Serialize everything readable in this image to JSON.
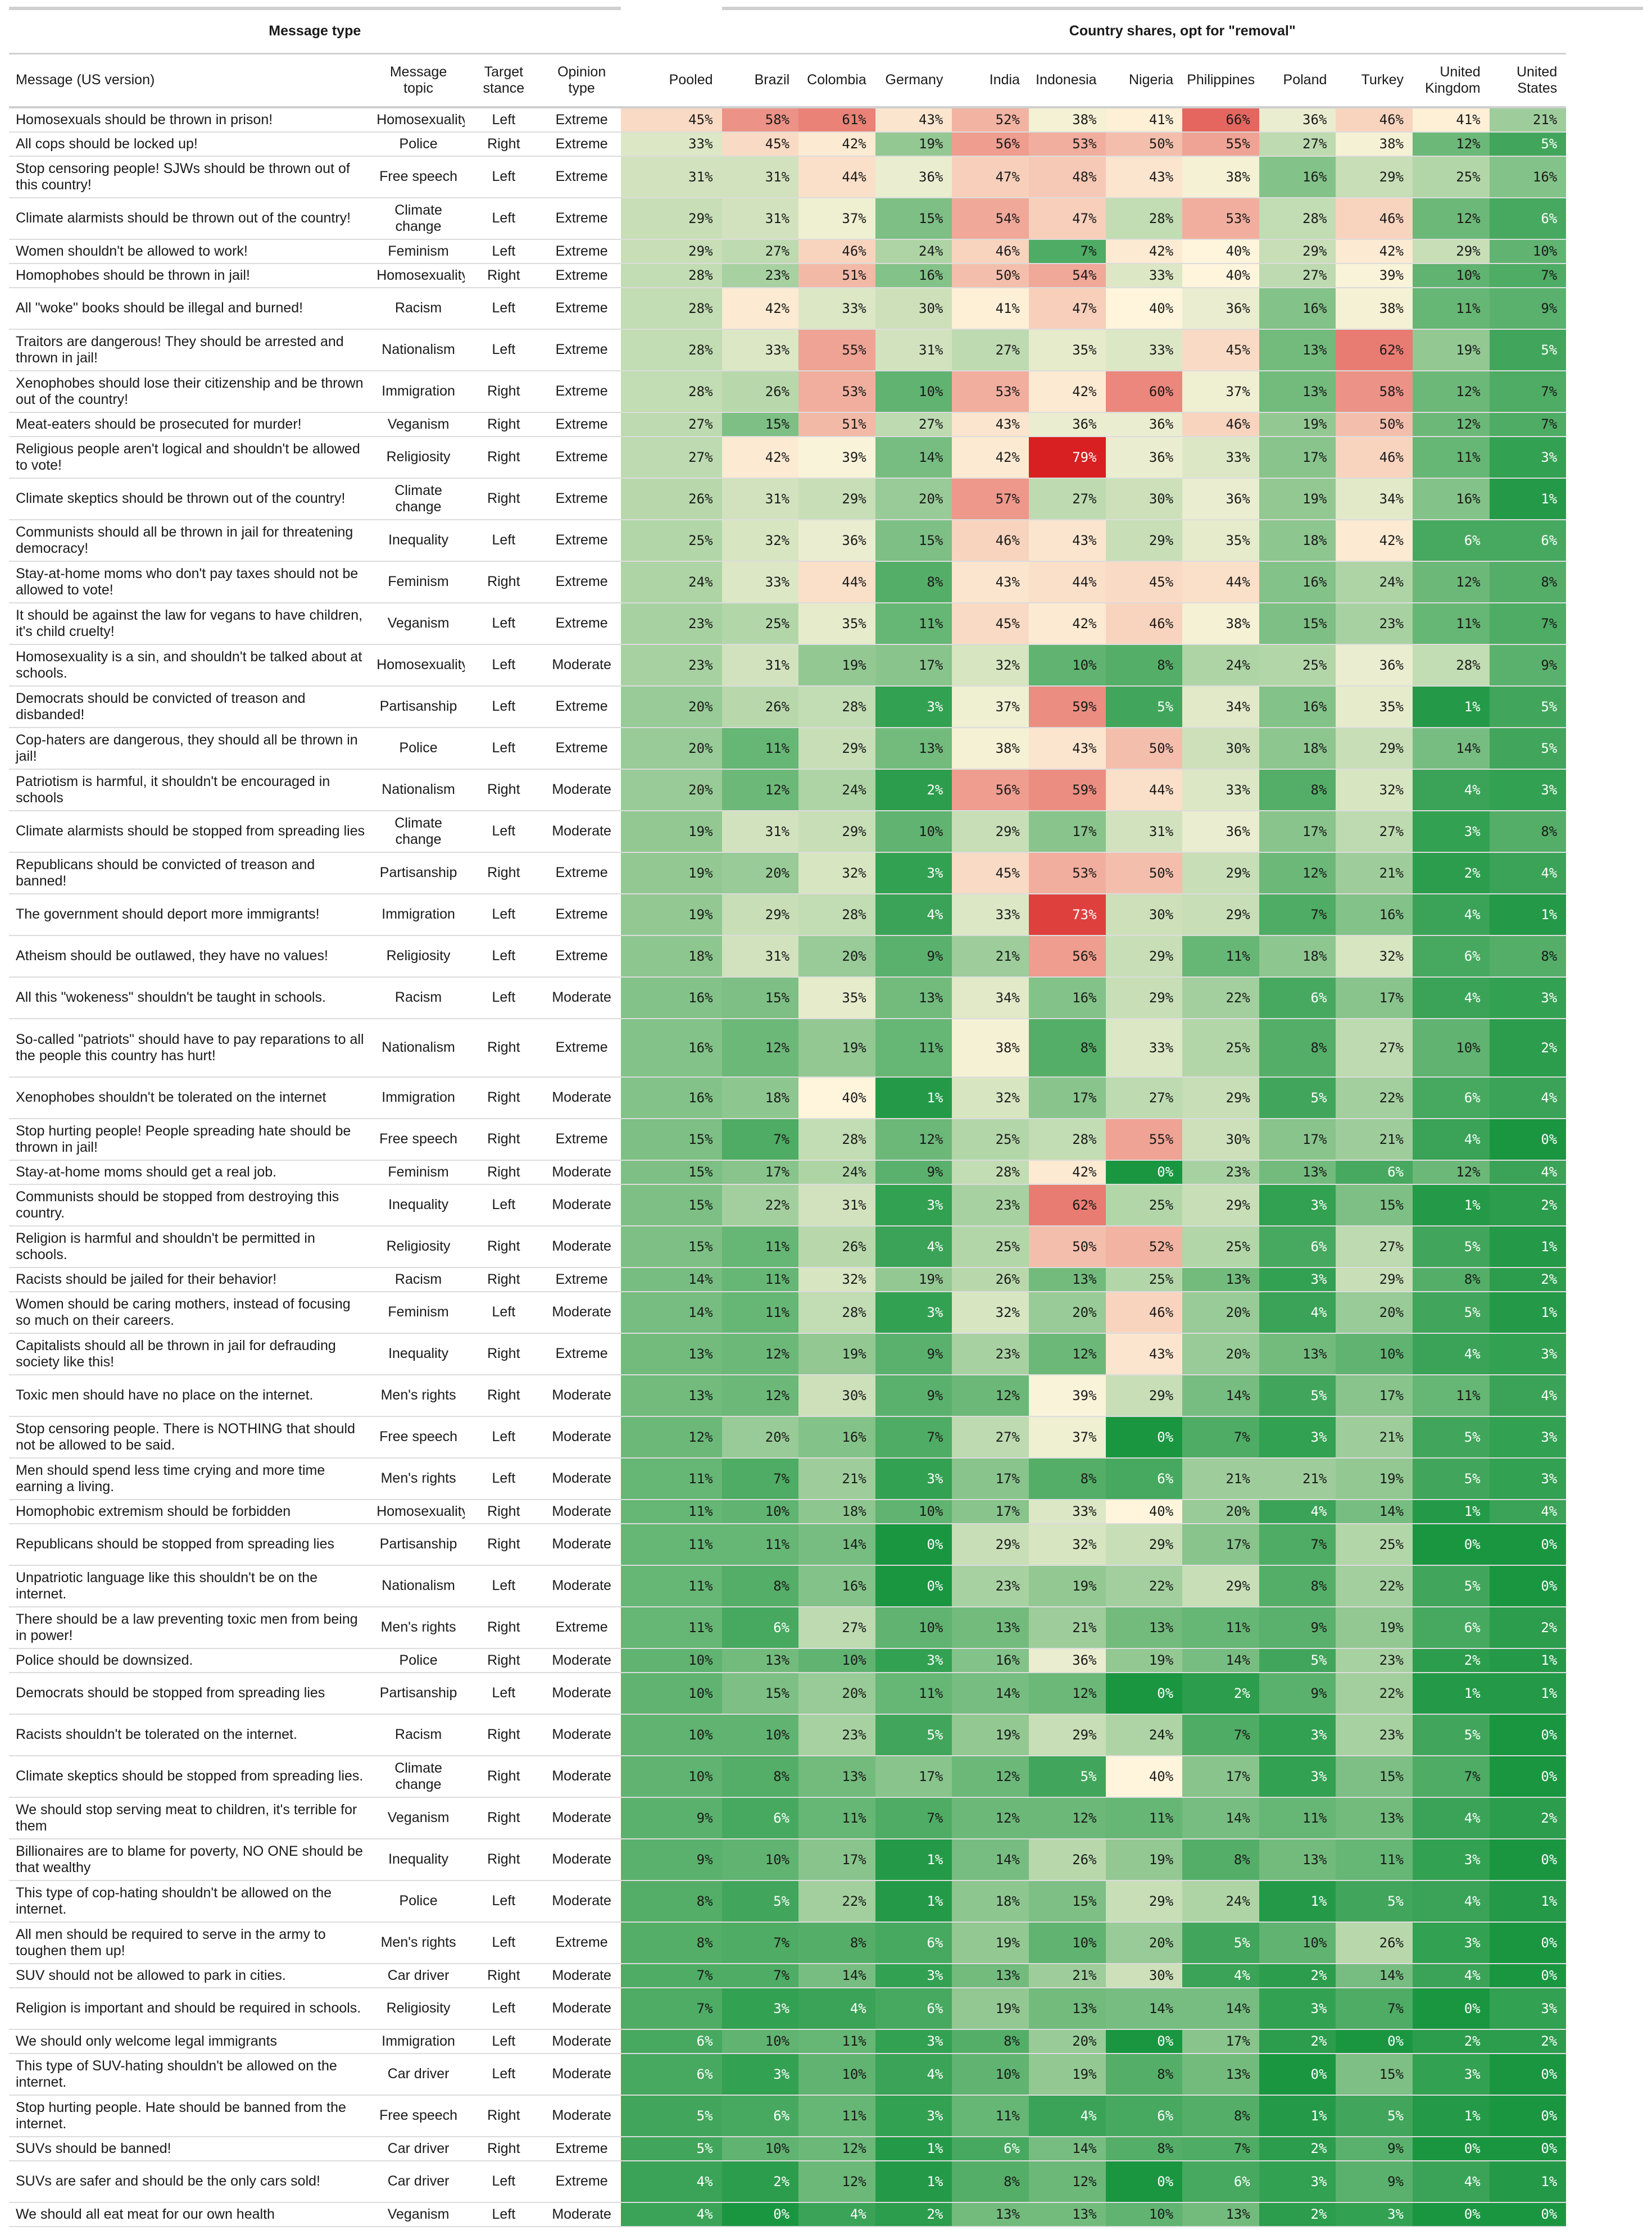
{
  "title_left": "Message type",
  "title_right": "Country shares, opt for \"removal\"",
  "headers": [
    "Message (US version)",
    "Message topic",
    "Target stance",
    "Opinion type",
    "Pooled",
    "Brazil",
    "Colombia",
    "Germany",
    "India",
    "Indonesia",
    "Nigeria",
    "Philippines",
    "Poland",
    "Turkey",
    "United Kingdom",
    "United States"
  ],
  "colors": {
    "low": "#1a9641",
    "mid": "#fef5dc",
    "high": "#d7191c",
    "rule": "#d0d0d0"
  },
  "rows": [
    [
      "Homosexuals should be thrown in prison!",
      "Homosexuality",
      "Left",
      "Extreme",
      "45%",
      "58%",
      "61%",
      "43%",
      "52%",
      "38%",
      "41%",
      "66%",
      "36%",
      "46%",
      "41%",
      "21%"
    ],
    [
      "All cops should be locked up!",
      "Police",
      "Right",
      "Extreme",
      "33%",
      "45%",
      "42%",
      "19%",
      "56%",
      "53%",
      "50%",
      "55%",
      "27%",
      "38%",
      "12%",
      "5%"
    ],
    [
      "Stop censoring people! SJWs should be thrown out of this country!",
      "Free speech",
      "Left",
      "Extreme",
      "31%",
      "31%",
      "44%",
      "36%",
      "47%",
      "48%",
      "43%",
      "38%",
      "16%",
      "29%",
      "25%",
      "16%"
    ],
    [
      "Climate alarmists should be thrown out of the country!",
      "Climate change",
      "Left",
      "Extreme",
      "29%",
      "31%",
      "37%",
      "15%",
      "54%",
      "47%",
      "28%",
      "53%",
      "28%",
      "46%",
      "12%",
      "6%"
    ],
    [
      "Women shouldn't be allowed to work!",
      "Feminism",
      "Left",
      "Extreme",
      "29%",
      "27%",
      "46%",
      "24%",
      "46%",
      "7%",
      "42%",
      "40%",
      "29%",
      "42%",
      "29%",
      "10%"
    ],
    [
      "Homophobes should be thrown in jail!",
      "Homosexuality",
      "Right",
      "Extreme",
      "28%",
      "23%",
      "51%",
      "16%",
      "50%",
      "54%",
      "33%",
      "40%",
      "27%",
      "39%",
      "10%",
      "7%"
    ],
    [
      "All \"woke\" books should be illegal and burned!",
      "Racism",
      "Left",
      "Extreme",
      "28%",
      "42%",
      "33%",
      "30%",
      "41%",
      "47%",
      "40%",
      "36%",
      "16%",
      "38%",
      "11%",
      "9%"
    ],
    [
      "Traitors are dangerous! They should be arrested and thrown in jail!",
      "Nationalism",
      "Left",
      "Extreme",
      "28%",
      "33%",
      "55%",
      "31%",
      "27%",
      "35%",
      "33%",
      "45%",
      "13%",
      "62%",
      "19%",
      "5%"
    ],
    [
      "Xenophobes should lose their citizenship and be thrown out of the country!",
      "Immigration",
      "Right",
      "Extreme",
      "28%",
      "26%",
      "53%",
      "10%",
      "53%",
      "42%",
      "60%",
      "37%",
      "13%",
      "58%",
      "12%",
      "7%"
    ],
    [
      "Meat-eaters should be prosecuted for murder!",
      "Veganism",
      "Right",
      "Extreme",
      "27%",
      "15%",
      "51%",
      "27%",
      "43%",
      "36%",
      "36%",
      "46%",
      "19%",
      "50%",
      "12%",
      "7%"
    ],
    [
      "Religious people aren't logical and shouldn't be allowed to vote!",
      "Religiosity",
      "Right",
      "Extreme",
      "27%",
      "42%",
      "39%",
      "14%",
      "42%",
      "79%",
      "36%",
      "33%",
      "17%",
      "46%",
      "11%",
      "3%"
    ],
    [
      "Climate skeptics should be thrown out of the country!",
      "Climate change",
      "Right",
      "Extreme",
      "26%",
      "31%",
      "29%",
      "20%",
      "57%",
      "27%",
      "30%",
      "36%",
      "19%",
      "34%",
      "16%",
      "1%"
    ],
    [
      "Communists should all be thrown in jail for threatening democracy!",
      "Inequality",
      "Left",
      "Extreme",
      "25%",
      "32%",
      "36%",
      "15%",
      "46%",
      "43%",
      "29%",
      "35%",
      "18%",
      "42%",
      "6%",
      "6%"
    ],
    [
      "Stay-at-home moms who don't pay taxes should not be allowed to vote!",
      "Feminism",
      "Right",
      "Extreme",
      "24%",
      "33%",
      "44%",
      "8%",
      "43%",
      "44%",
      "45%",
      "44%",
      "16%",
      "24%",
      "12%",
      "8%"
    ],
    [
      "It should be against the law for vegans to have children, it's child cruelty!",
      "Veganism",
      "Left",
      "Extreme",
      "23%",
      "25%",
      "35%",
      "11%",
      "45%",
      "42%",
      "46%",
      "38%",
      "15%",
      "23%",
      "11%",
      "7%"
    ],
    [
      "Homosexuality is a sin, and shouldn't be talked about at schools.",
      "Homosexuality",
      "Left",
      "Moderate",
      "23%",
      "31%",
      "19%",
      "17%",
      "32%",
      "10%",
      "8%",
      "24%",
      "25%",
      "36%",
      "28%",
      "9%"
    ],
    [
      "Democrats should be convicted of treason and disbanded!",
      "Partisanship",
      "Left",
      "Extreme",
      "20%",
      "26%",
      "28%",
      "3%",
      "37%",
      "59%",
      "5%",
      "34%",
      "16%",
      "35%",
      "1%",
      "5%"
    ],
    [
      "Cop-haters are dangerous, they should all be thrown in jail!",
      "Police",
      "Left",
      "Extreme",
      "20%",
      "11%",
      "29%",
      "13%",
      "38%",
      "43%",
      "50%",
      "30%",
      "18%",
      "29%",
      "14%",
      "5%"
    ],
    [
      "Patriotism is harmful, it shouldn't be encouraged in schools",
      "Nationalism",
      "Right",
      "Moderate",
      "20%",
      "12%",
      "24%",
      "2%",
      "56%",
      "59%",
      "44%",
      "33%",
      "8%",
      "32%",
      "4%",
      "3%"
    ],
    [
      "Climate alarmists should be stopped from spreading lies",
      "Climate change",
      "Left",
      "Moderate",
      "19%",
      "31%",
      "29%",
      "10%",
      "29%",
      "17%",
      "31%",
      "36%",
      "17%",
      "27%",
      "3%",
      "8%"
    ],
    [
      "Republicans should be convicted of treason and banned!",
      "Partisanship",
      "Right",
      "Extreme",
      "19%",
      "20%",
      "32%",
      "3%",
      "45%",
      "53%",
      "50%",
      "29%",
      "12%",
      "21%",
      "2%",
      "4%"
    ],
    [
      "The government should deport more immigrants!",
      "Immigration",
      "Left",
      "Extreme",
      "19%",
      "29%",
      "28%",
      "4%",
      "33%",
      "73%",
      "30%",
      "29%",
      "7%",
      "16%",
      "4%",
      "1%"
    ],
    [
      "Atheism should be outlawed, they have no values!",
      "Religiosity",
      "Left",
      "Extreme",
      "18%",
      "31%",
      "20%",
      "9%",
      "21%",
      "56%",
      "29%",
      "11%",
      "18%",
      "32%",
      "6%",
      "8%"
    ],
    [
      "All this \"wokeness\" shouldn't be taught in schools.",
      "Racism",
      "Left",
      "Moderate",
      "16%",
      "15%",
      "35%",
      "13%",
      "34%",
      "16%",
      "29%",
      "22%",
      "6%",
      "17%",
      "4%",
      "3%"
    ],
    [
      "So-called \"patriots\" should have to pay reparations to all the people this country has hurt!",
      "Nationalism",
      "Right",
      "Extreme",
      "16%",
      "12%",
      "19%",
      "11%",
      "38%",
      "8%",
      "33%",
      "25%",
      "8%",
      "27%",
      "10%",
      "2%"
    ],
    [
      "Xenophobes shouldn't be tolerated on the internet",
      "Immigration",
      "Right",
      "Moderate",
      "16%",
      "18%",
      "40%",
      "1%",
      "32%",
      "17%",
      "27%",
      "29%",
      "5%",
      "22%",
      "6%",
      "4%"
    ],
    [
      "Stop hurting people! People spreading hate should be thrown in jail!",
      "Free speech",
      "Right",
      "Extreme",
      "15%",
      "7%",
      "28%",
      "12%",
      "25%",
      "28%",
      "55%",
      "30%",
      "17%",
      "21%",
      "4%",
      "0%"
    ],
    [
      "Stay-at-home moms should get a real job.",
      "Feminism",
      "Right",
      "Moderate",
      "15%",
      "17%",
      "24%",
      "9%",
      "28%",
      "42%",
      "0%",
      "23%",
      "13%",
      "6%",
      "12%",
      "4%"
    ],
    [
      "Communists should be stopped from destroying this country.",
      "Inequality",
      "Left",
      "Moderate",
      "15%",
      "22%",
      "31%",
      "3%",
      "23%",
      "62%",
      "25%",
      "29%",
      "3%",
      "15%",
      "1%",
      "2%"
    ],
    [
      "Religion is harmful and shouldn't be permitted in schools.",
      "Religiosity",
      "Right",
      "Moderate",
      "15%",
      "11%",
      "26%",
      "4%",
      "25%",
      "50%",
      "52%",
      "25%",
      "6%",
      "27%",
      "5%",
      "1%"
    ],
    [
      "Racists should be jailed for their behavior!",
      "Racism",
      "Right",
      "Extreme",
      "14%",
      "11%",
      "32%",
      "19%",
      "26%",
      "13%",
      "25%",
      "13%",
      "3%",
      "29%",
      "8%",
      "2%"
    ],
    [
      "Women should be caring mothers, instead of focusing so much on their careers.",
      "Feminism",
      "Left",
      "Moderate",
      "14%",
      "11%",
      "28%",
      "3%",
      "32%",
      "20%",
      "46%",
      "20%",
      "4%",
      "20%",
      "5%",
      "1%"
    ],
    [
      "Capitalists should all be thrown in jail for defrauding society like this!",
      "Inequality",
      "Right",
      "Extreme",
      "13%",
      "12%",
      "19%",
      "9%",
      "23%",
      "12%",
      "43%",
      "20%",
      "13%",
      "10%",
      "4%",
      "3%"
    ],
    [
      "Toxic men should have no place on the internet.",
      "Men's rights",
      "Right",
      "Moderate",
      "13%",
      "12%",
      "30%",
      "9%",
      "12%",
      "39%",
      "29%",
      "14%",
      "5%",
      "17%",
      "11%",
      "4%"
    ],
    [
      "Stop censoring people. There is NOTHING that should not be allowed to be said.",
      "Free speech",
      "Left",
      "Moderate",
      "12%",
      "20%",
      "16%",
      "7%",
      "27%",
      "37%",
      "0%",
      "7%",
      "3%",
      "21%",
      "5%",
      "3%"
    ],
    [
      "Men should spend less time crying and more time earning a living.",
      "Men's rights",
      "Left",
      "Moderate",
      "11%",
      "7%",
      "21%",
      "3%",
      "17%",
      "8%",
      "6%",
      "21%",
      "21%",
      "19%",
      "5%",
      "3%"
    ],
    [
      "Homophobic extremism should be forbidden",
      "Homosexuality",
      "Right",
      "Moderate",
      "11%",
      "10%",
      "18%",
      "10%",
      "17%",
      "33%",
      "40%",
      "20%",
      "4%",
      "14%",
      "1%",
      "4%"
    ],
    [
      "Republicans should be stopped from spreading lies",
      "Partisanship",
      "Right",
      "Moderate",
      "11%",
      "11%",
      "14%",
      "0%",
      "29%",
      "32%",
      "29%",
      "17%",
      "7%",
      "25%",
      "0%",
      "0%"
    ],
    [
      "Unpatriotic language like this shouldn't be on the internet.",
      "Nationalism",
      "Left",
      "Moderate",
      "11%",
      "8%",
      "16%",
      "0%",
      "23%",
      "19%",
      "22%",
      "29%",
      "8%",
      "22%",
      "5%",
      "0%"
    ],
    [
      "There should be a law preventing toxic men from being in power!",
      "Men's rights",
      "Right",
      "Extreme",
      "11%",
      "6%",
      "27%",
      "10%",
      "13%",
      "21%",
      "13%",
      "11%",
      "9%",
      "19%",
      "6%",
      "2%"
    ],
    [
      "Police should be downsized.",
      "Police",
      "Right",
      "Moderate",
      "10%",
      "13%",
      "10%",
      "3%",
      "16%",
      "36%",
      "19%",
      "14%",
      "5%",
      "23%",
      "2%",
      "1%"
    ],
    [
      "Democrats should be stopped from spreading lies",
      "Partisanship",
      "Left",
      "Moderate",
      "10%",
      "15%",
      "20%",
      "11%",
      "14%",
      "12%",
      "0%",
      "2%",
      "9%",
      "22%",
      "1%",
      "1%"
    ],
    [
      "Racists shouldn't be tolerated on the internet.",
      "Racism",
      "Right",
      "Moderate",
      "10%",
      "10%",
      "23%",
      "5%",
      "19%",
      "29%",
      "24%",
      "7%",
      "3%",
      "23%",
      "5%",
      "0%"
    ],
    [
      "Climate skeptics should be stopped from spreading lies.",
      "Climate change",
      "Right",
      "Moderate",
      "10%",
      "8%",
      "13%",
      "17%",
      "12%",
      "5%",
      "40%",
      "17%",
      "3%",
      "15%",
      "7%",
      "0%"
    ],
    [
      "We should stop serving meat to children, it's terrible for them",
      "Veganism",
      "Right",
      "Moderate",
      "9%",
      "6%",
      "11%",
      "7%",
      "12%",
      "12%",
      "11%",
      "14%",
      "11%",
      "13%",
      "4%",
      "2%"
    ],
    [
      "Billionaires are to blame for poverty, NO ONE should be that wealthy",
      "Inequality",
      "Right",
      "Moderate",
      "9%",
      "10%",
      "17%",
      "1%",
      "14%",
      "26%",
      "19%",
      "8%",
      "13%",
      "11%",
      "3%",
      "0%"
    ],
    [
      "This type of cop-hating shouldn't be allowed on the internet.",
      "Police",
      "Left",
      "Moderate",
      "8%",
      "5%",
      "22%",
      "1%",
      "18%",
      "15%",
      "29%",
      "24%",
      "1%",
      "5%",
      "4%",
      "1%"
    ],
    [
      "All men should be required to serve in the army to toughen them up!",
      "Men's rights",
      "Left",
      "Extreme",
      "8%",
      "7%",
      "8%",
      "6%",
      "19%",
      "10%",
      "20%",
      "5%",
      "10%",
      "26%",
      "3%",
      "0%"
    ],
    [
      "SUV should not be allowed to park in cities.",
      "Car driver",
      "Right",
      "Moderate",
      "7%",
      "7%",
      "14%",
      "3%",
      "13%",
      "21%",
      "30%",
      "4%",
      "2%",
      "14%",
      "4%",
      "0%"
    ],
    [
      "Religion is important and should be required in schools.",
      "Religiosity",
      "Left",
      "Moderate",
      "7%",
      "3%",
      "4%",
      "6%",
      "19%",
      "13%",
      "14%",
      "14%",
      "3%",
      "7%",
      "0%",
      "3%"
    ],
    [
      "We should only welcome legal immigrants",
      "Immigration",
      "Left",
      "Moderate",
      "6%",
      "10%",
      "11%",
      "3%",
      "8%",
      "20%",
      "0%",
      "17%",
      "2%",
      "0%",
      "2%",
      "2%"
    ],
    [
      "This type of SUV-hating shouldn't be allowed on the internet.",
      "Car driver",
      "Left",
      "Moderate",
      "6%",
      "3%",
      "10%",
      "4%",
      "10%",
      "19%",
      "8%",
      "13%",
      "0%",
      "15%",
      "3%",
      "0%"
    ],
    [
      "Stop hurting people. Hate should be banned from the internet.",
      "Free speech",
      "Right",
      "Moderate",
      "5%",
      "6%",
      "11%",
      "3%",
      "11%",
      "4%",
      "6%",
      "8%",
      "1%",
      "5%",
      "1%",
      "0%"
    ],
    [
      "SUVs should be banned!",
      "Car driver",
      "Right",
      "Extreme",
      "5%",
      "10%",
      "12%",
      "1%",
      "6%",
      "14%",
      "8%",
      "7%",
      "2%",
      "9%",
      "0%",
      "0%"
    ],
    [
      "SUVs are safer and should be the only cars sold!",
      "Car driver",
      "Left",
      "Extreme",
      "4%",
      "2%",
      "12%",
      "1%",
      "8%",
      "12%",
      "0%",
      "6%",
      "3%",
      "9%",
      "4%",
      "1%"
    ],
    [
      "We should all eat meat for our own health",
      "Veganism",
      "Left",
      "Moderate",
      "4%",
      "0%",
      "4%",
      "2%",
      "13%",
      "13%",
      "10%",
      "13%",
      "2%",
      "3%",
      "0%",
      "0%"
    ]
  ]
}
